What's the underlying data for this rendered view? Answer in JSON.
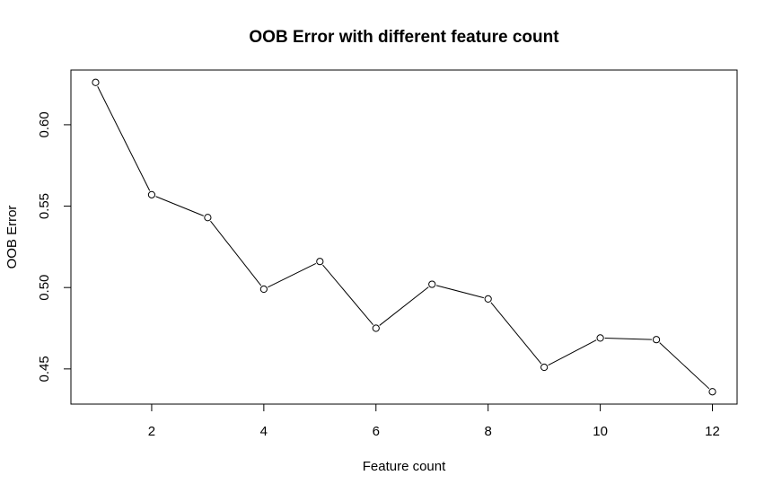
{
  "chart_data": {
    "type": "line",
    "title": "OOB Error with different feature count",
    "xlabel": "Feature count",
    "ylabel": "OOB Error",
    "x": [
      1,
      2,
      3,
      4,
      5,
      6,
      7,
      8,
      9,
      10,
      11,
      12
    ],
    "series": [
      {
        "values": [
          0.626,
          0.557,
          0.543,
          0.499,
          0.516,
          0.475,
          0.502,
          0.493,
          0.451,
          0.469,
          0.468,
          0.436
        ]
      }
    ],
    "xlim": [
      0.56,
      12.44
    ],
    "ylim": [
      0.4284,
      0.6336
    ],
    "xticks": [
      2,
      4,
      6,
      8,
      10,
      12
    ],
    "yticks": [
      0.45,
      0.5,
      0.55,
      0.6
    ],
    "xtick_labels": [
      "2",
      "4",
      "6",
      "8",
      "10",
      "12"
    ],
    "ytick_labels": [
      "0.45",
      "0.50",
      "0.55",
      "0.60"
    ],
    "grid": false,
    "legend": "none",
    "marker": "open-circle",
    "line_color": "#000000",
    "background_color": "#ffffff"
  }
}
